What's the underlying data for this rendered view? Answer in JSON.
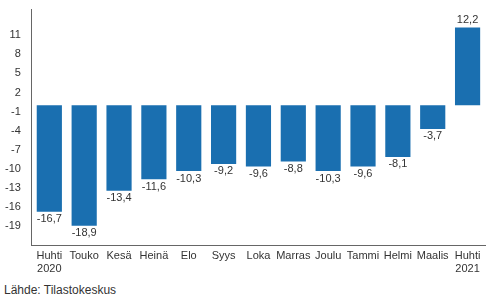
{
  "chart_data": {
    "type": "bar",
    "categories": [
      "Huhti 2020",
      "Touko",
      "Kesä",
      "Heinä",
      "Elo",
      "Syys",
      "Loka",
      "Marras",
      "Joulu",
      "Tammi",
      "Helmi",
      "Maalis",
      "Huhti 2021"
    ],
    "values": [
      -16.7,
      -18.9,
      -13.4,
      -11.6,
      -10.3,
      -9.2,
      -9.6,
      -8.8,
      -10.3,
      -9.6,
      -8.1,
      -3.7,
      12.2
    ],
    "value_labels": [
      "-16,7",
      "-18,9",
      "-13,4",
      "-11,6",
      "-10,3",
      "-9,2",
      "-9,6",
      "-8,8",
      "-10,3",
      "-9,6",
      "-8,1",
      "-3,7",
      "12,2"
    ],
    "color": "#1a6fb0",
    "ylim": [
      -22,
      15
    ],
    "yticks": [
      -19,
      -16,
      -13,
      -10,
      -7,
      -4,
      -1,
      2,
      5,
      8,
      11
    ],
    "grid": false,
    "data_labels": true,
    "source": "Lähde: Tilastokeskus"
  }
}
